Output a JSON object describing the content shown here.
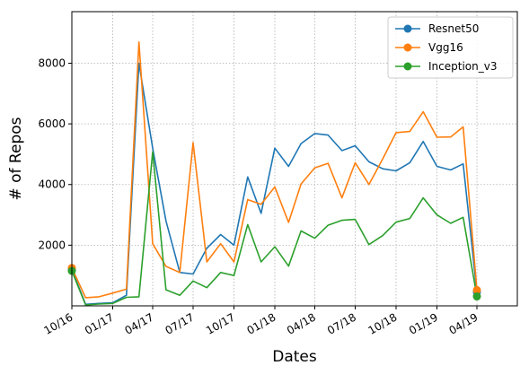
{
  "chart_data": {
    "type": "line",
    "xlabel": "Dates",
    "ylabel": "# of Repos",
    "x_ticks": [
      "10/16",
      "01/17",
      "04/17",
      "07/17",
      "10/17",
      "01/18",
      "04/18",
      "07/18",
      "10/18",
      "01/19",
      "04/19"
    ],
    "y_ticks": [
      2000,
      4000,
      6000,
      8000
    ],
    "xlim": [
      "2016-10-01",
      "2019-07-01"
    ],
    "ylim": [
      0,
      9700
    ],
    "grid": true,
    "legend_position": "top-right",
    "series": [
      {
        "name": "Resnet50",
        "color": "#1f77b4",
        "points": [
          [
            "2016-10-01",
            1200
          ],
          [
            "2016-11-01",
            50
          ],
          [
            "2016-12-01",
            80
          ],
          [
            "2017-01-01",
            100
          ],
          [
            "2017-02-01",
            350
          ],
          [
            "2017-03-01",
            8000
          ],
          [
            "2017-04-01",
            5200
          ],
          [
            "2017-05-01",
            2800
          ],
          [
            "2017-06-01",
            1100
          ],
          [
            "2017-07-01",
            1050
          ],
          [
            "2017-08-01",
            1900
          ],
          [
            "2017-09-01",
            2350
          ],
          [
            "2017-10-01",
            2000
          ],
          [
            "2017-11-01",
            4250
          ],
          [
            "2017-12-01",
            3050
          ],
          [
            "2018-01-01",
            5200
          ],
          [
            "2018-02-01",
            4600
          ],
          [
            "2018-03-01",
            5350
          ],
          [
            "2018-04-01",
            5680
          ],
          [
            "2018-05-01",
            5630
          ],
          [
            "2018-06-01",
            5120
          ],
          [
            "2018-07-01",
            5280
          ],
          [
            "2018-08-01",
            4750
          ],
          [
            "2018-09-01",
            4520
          ],
          [
            "2018-10-01",
            4450
          ],
          [
            "2018-11-01",
            4720
          ],
          [
            "2018-12-01",
            5420
          ],
          [
            "2019-01-01",
            4600
          ],
          [
            "2019-02-01",
            4480
          ],
          [
            "2019-03-01",
            4680
          ],
          [
            "2019-04-01",
            450
          ]
        ]
      },
      {
        "name": "Vgg16",
        "color": "#ff7f0e",
        "points": [
          [
            "2016-10-01",
            1250
          ],
          [
            "2016-11-01",
            270
          ],
          [
            "2016-12-01",
            300
          ],
          [
            "2017-01-01",
            420
          ],
          [
            "2017-02-01",
            550
          ],
          [
            "2017-03-01",
            8700
          ],
          [
            "2017-04-01",
            2050
          ],
          [
            "2017-05-01",
            1300
          ],
          [
            "2017-06-01",
            1100
          ],
          [
            "2017-07-01",
            5380
          ],
          [
            "2017-08-01",
            1450
          ],
          [
            "2017-09-01",
            2050
          ],
          [
            "2017-10-01",
            1450
          ],
          [
            "2017-11-01",
            3500
          ],
          [
            "2017-12-01",
            3350
          ],
          [
            "2018-01-01",
            3920
          ],
          [
            "2018-02-01",
            2750
          ],
          [
            "2018-03-01",
            4020
          ],
          [
            "2018-04-01",
            4550
          ],
          [
            "2018-05-01",
            4700
          ],
          [
            "2018-06-01",
            3560
          ],
          [
            "2018-07-01",
            4720
          ],
          [
            "2018-08-01",
            4000
          ],
          [
            "2018-09-01",
            4850
          ],
          [
            "2018-10-01",
            5710
          ],
          [
            "2018-11-01",
            5750
          ],
          [
            "2018-12-01",
            6400
          ],
          [
            "2019-01-01",
            5560
          ],
          [
            "2019-02-01",
            5570
          ],
          [
            "2019-03-01",
            5900
          ],
          [
            "2019-04-01",
            520
          ]
        ]
      },
      {
        "name": "Inception_v3",
        "color": "#2ca02c",
        "points": [
          [
            "2016-10-01",
            1150
          ],
          [
            "2016-11-01",
            30
          ],
          [
            "2016-12-01",
            60
          ],
          [
            "2017-01-01",
            80
          ],
          [
            "2017-02-01",
            280
          ],
          [
            "2017-03-01",
            300
          ],
          [
            "2017-04-01",
            5080
          ],
          [
            "2017-05-01",
            530
          ],
          [
            "2017-06-01",
            350
          ],
          [
            "2017-07-01",
            820
          ],
          [
            "2017-08-01",
            600
          ],
          [
            "2017-09-01",
            1100
          ],
          [
            "2017-10-01",
            1000
          ],
          [
            "2017-11-01",
            2680
          ],
          [
            "2017-12-01",
            1450
          ],
          [
            "2018-01-01",
            1950
          ],
          [
            "2018-02-01",
            1310
          ],
          [
            "2018-03-01",
            2470
          ],
          [
            "2018-04-01",
            2230
          ],
          [
            "2018-05-01",
            2660
          ],
          [
            "2018-06-01",
            2820
          ],
          [
            "2018-07-01",
            2850
          ],
          [
            "2018-08-01",
            2020
          ],
          [
            "2018-09-01",
            2320
          ],
          [
            "2018-10-01",
            2760
          ],
          [
            "2018-11-01",
            2880
          ],
          [
            "2018-12-01",
            3560
          ],
          [
            "2019-01-01",
            3000
          ],
          [
            "2019-02-01",
            2720
          ],
          [
            "2019-03-01",
            2920
          ],
          [
            "2019-04-01",
            310
          ]
        ]
      }
    ]
  }
}
